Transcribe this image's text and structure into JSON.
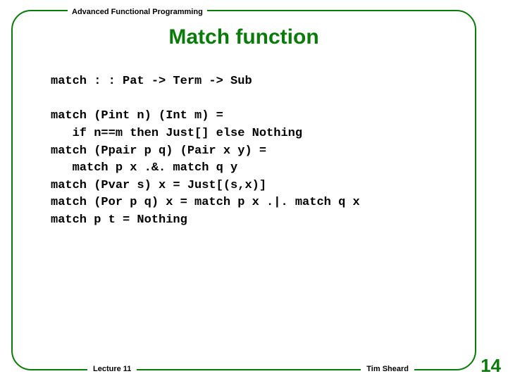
{
  "header": {
    "course_label": "Advanced Functional Programming"
  },
  "title": "Match function",
  "code": {
    "signature": "match : : Pat -> Term -> Sub",
    "body_line1": "match (Pint n) (Int m) =",
    "body_line2": "   if n==m then Just[] else Nothing",
    "body_line3": "match (Ppair p q) (Pair x y) =",
    "body_line4": "   match p x .&. match q y",
    "body_line5": "match (Pvar s) x = Just[(s,x)]",
    "body_line6": "match (Por p q) x = match p x .|. match q x",
    "body_line7": "match p t = Nothing"
  },
  "footer": {
    "lecture": "Lecture 11",
    "author": "Tim Sheard",
    "page": "14"
  },
  "colors": {
    "accent": "#0a7a0a",
    "text": "#000000",
    "background": "#ffffff"
  }
}
